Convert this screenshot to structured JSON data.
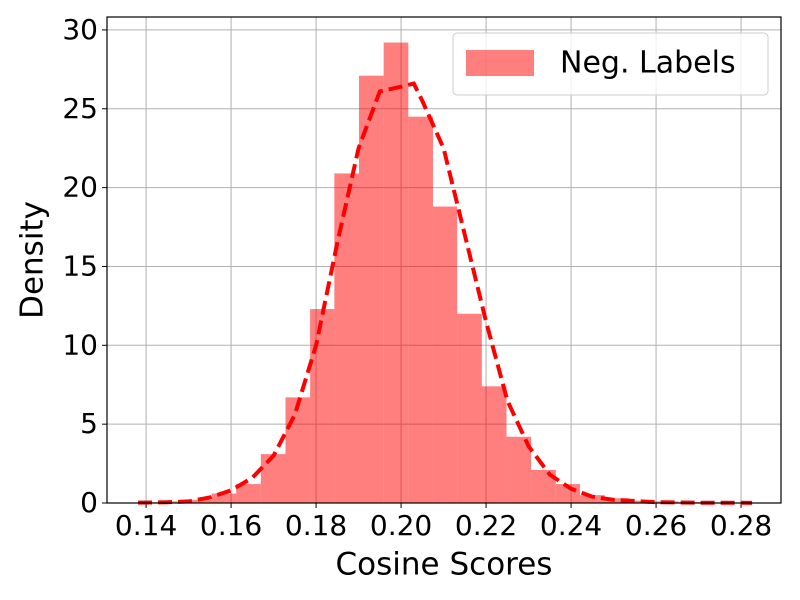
{
  "chart_data": {
    "type": "histogram",
    "xlabel": "Cosine Scores",
    "ylabel": "Density",
    "name": "Neg. Labels",
    "color": "#ff0000",
    "bins": [
      0.1381,
      0.1439,
      0.1497,
      0.1554,
      0.1612,
      0.167,
      0.1728,
      0.1786,
      0.1843,
      0.1901,
      0.1959,
      0.2017,
      0.2075,
      0.2132,
      0.219,
      0.2248,
      0.2306,
      0.2364,
      0.2421,
      0.2479,
      0.2537,
      0.2595,
      0.2653,
      0.271,
      0.2768,
      0.2826
    ],
    "values": [
      0.05,
      0.1,
      0.2,
      0.6,
      1.2,
      3.1,
      6.7,
      12.3,
      20.9,
      27.1,
      29.2,
      24.5,
      18.8,
      12.0,
      7.4,
      4.2,
      2.1,
      1.2,
      0.5,
      0.3,
      0.15,
      0.1,
      0.05,
      0.03,
      0.02
    ],
    "kde": {
      "color": "#ff0000",
      "x": [
        0.1381,
        0.145,
        0.15,
        0.155,
        0.16,
        0.165,
        0.17,
        0.175,
        0.18,
        0.185,
        0.19,
        0.195,
        0.2,
        0.203,
        0.205,
        0.21,
        0.215,
        0.22,
        0.225,
        0.23,
        0.235,
        0.24,
        0.245,
        0.25,
        0.26,
        0.27,
        0.2826
      ],
      "values": [
        0.02,
        0.05,
        0.1,
        0.35,
        0.8,
        1.6,
        3.0,
        5.6,
        10.0,
        16.5,
        22.5,
        26.1,
        26.4,
        26.6,
        25.5,
        22.5,
        17.0,
        11.5,
        6.5,
        3.6,
        1.8,
        0.9,
        0.4,
        0.2,
        0.05,
        0.02,
        0.01
      ]
    },
    "xlim": [
      0.1308,
      0.2894
    ],
    "ylim": [
      0,
      30.82
    ],
    "xticks": [
      0.14,
      0.16,
      0.18,
      {
        "value": 0.2,
        "label": "0.20"
      },
      0.22,
      0.24,
      0.26,
      0.28
    ],
    "yticks": [
      0,
      5,
      10,
      15,
      20,
      25,
      30
    ],
    "grid": true,
    "legend": "upper right"
  }
}
